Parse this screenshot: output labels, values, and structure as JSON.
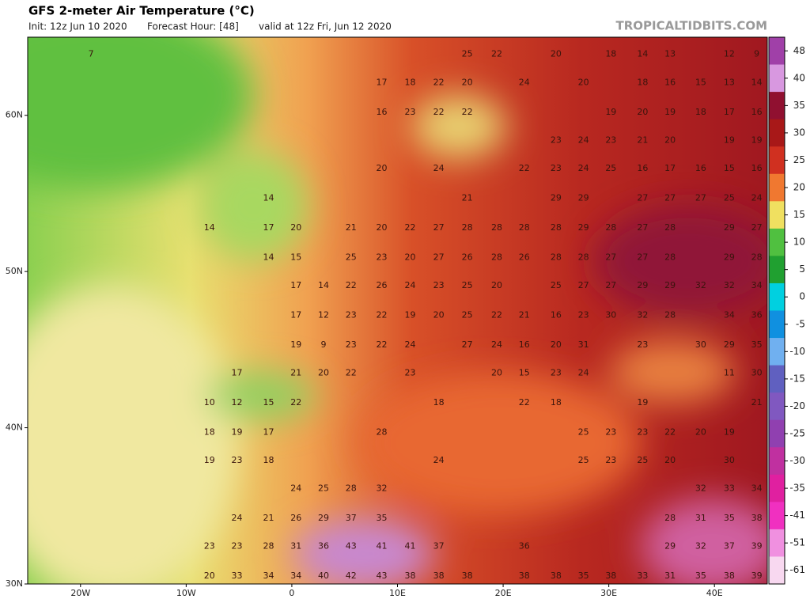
{
  "header": {
    "title": "GFS 2-meter Air Temperature (°C)",
    "init": "Init: 12z Jun 10 2020",
    "forecast_hour": "Forecast Hour: [48]",
    "valid": "valid at 12z Fri, Jun 12 2020",
    "site": "TROPICALTIDBITS.COM"
  },
  "map": {
    "lon_range": [
      -25,
      45
    ],
    "lat_range": [
      30,
      65
    ],
    "lat_ticks": [
      {
        "value": 60,
        "label": "60N"
      },
      {
        "value": 50,
        "label": "50N"
      },
      {
        "value": 40,
        "label": "40N"
      },
      {
        "value": 30,
        "label": "30N"
      }
    ],
    "lon_ticks": [
      {
        "value": -20,
        "label": "20W"
      },
      {
        "value": -10,
        "label": "10W"
      },
      0,
      {
        "value": 10,
        "label": "10E"
      },
      {
        "value": 20,
        "label": "20E"
      },
      {
        "value": 30,
        "label": "30E"
      },
      {
        "value": 40,
        "label": "40E"
      }
    ],
    "rows": [
      {
        "lat": 63.9,
        "points": [
          {
            "lon": -19,
            "value": 7
          },
          {
            "lon": 16.6,
            "value": 25
          },
          {
            "lon": 19.4,
            "value": 22
          },
          {
            "lon": 25,
            "value": 20
          },
          {
            "lon": 30.2,
            "value": 18
          },
          {
            "lon": 33.2,
            "value": 14
          },
          {
            "lon": 35.8,
            "value": 13
          },
          {
            "lon": 41.4,
            "value": 12
          },
          {
            "lon": 44,
            "value": 9
          }
        ]
      },
      {
        "lat": 62.1,
        "points": [
          {
            "lon": 8.5,
            "value": 17
          },
          {
            "lon": 11.2,
            "value": 18
          },
          {
            "lon": 13.9,
            "value": 22
          },
          {
            "lon": 16.6,
            "value": 20
          },
          {
            "lon": 22,
            "value": 24
          },
          {
            "lon": 27.6,
            "value": 20
          },
          {
            "lon": 33.2,
            "value": 18
          },
          {
            "lon": 35.8,
            "value": 16
          },
          {
            "lon": 38.7,
            "value": 15
          },
          {
            "lon": 41.4,
            "value": 13
          },
          {
            "lon": 44,
            "value": 14
          }
        ]
      },
      {
        "lat": 60.2,
        "points": [
          {
            "lon": 8.5,
            "value": 16
          },
          {
            "lon": 11.2,
            "value": 23
          },
          {
            "lon": 13.9,
            "value": 22
          },
          {
            "lon": 16.6,
            "value": 22
          },
          {
            "lon": 30.2,
            "value": 19
          },
          {
            "lon": 33.2,
            "value": 20
          },
          {
            "lon": 35.8,
            "value": 19
          },
          {
            "lon": 38.7,
            "value": 18
          },
          {
            "lon": 41.4,
            "value": 17
          },
          {
            "lon": 44,
            "value": 16
          }
        ]
      },
      {
        "lat": 58.4,
        "points": [
          {
            "lon": 25,
            "value": 23
          },
          {
            "lon": 27.6,
            "value": 24
          },
          {
            "lon": 30.2,
            "value": 23
          },
          {
            "lon": 33.2,
            "value": 21
          },
          {
            "lon": 35.8,
            "value": 20
          },
          {
            "lon": 41.4,
            "value": 19
          },
          {
            "lon": 44,
            "value": 19
          }
        ]
      },
      {
        "lat": 56.6,
        "points": [
          {
            "lon": 8.5,
            "value": 20
          },
          {
            "lon": 13.9,
            "value": 24
          },
          {
            "lon": 22,
            "value": 22
          },
          {
            "lon": 25,
            "value": 23
          },
          {
            "lon": 27.6,
            "value": 24
          },
          {
            "lon": 30.2,
            "value": 25
          },
          {
            "lon": 33.2,
            "value": 16
          },
          {
            "lon": 35.8,
            "value": 17
          },
          {
            "lon": 38.7,
            "value": 16
          },
          {
            "lon": 41.4,
            "value": 15
          },
          {
            "lon": 44,
            "value": 16
          }
        ]
      },
      {
        "lat": 54.7,
        "points": [
          {
            "lon": -2.2,
            "value": 14
          },
          {
            "lon": 16.6,
            "value": 21
          },
          {
            "lon": 25,
            "value": 29
          },
          {
            "lon": 27.6,
            "value": 29
          },
          {
            "lon": 33.2,
            "value": 27
          },
          {
            "lon": 35.8,
            "value": 27
          },
          {
            "lon": 38.7,
            "value": 27
          },
          {
            "lon": 41.4,
            "value": 25
          },
          {
            "lon": 44,
            "value": 24
          }
        ]
      },
      {
        "lat": 52.8,
        "points": [
          {
            "lon": -7.8,
            "value": 14
          },
          {
            "lon": -2.2,
            "value": 17
          },
          {
            "lon": 0.4,
            "value": 20
          },
          {
            "lon": 5.6,
            "value": 21
          },
          {
            "lon": 8.5,
            "value": 20
          },
          {
            "lon": 11.2,
            "value": 22
          },
          {
            "lon": 13.9,
            "value": 27
          },
          {
            "lon": 16.6,
            "value": 28
          },
          {
            "lon": 19.4,
            "value": 28
          },
          {
            "lon": 22,
            "value": 28
          },
          {
            "lon": 25,
            "value": 28
          },
          {
            "lon": 27.6,
            "value": 29
          },
          {
            "lon": 30.2,
            "value": 28
          },
          {
            "lon": 33.2,
            "value": 27
          },
          {
            "lon": 35.8,
            "value": 28
          },
          {
            "lon": 41.4,
            "value": 29
          },
          {
            "lon": 44,
            "value": 27
          }
        ]
      },
      {
        "lat": 50.9,
        "points": [
          {
            "lon": -2.2,
            "value": 14
          },
          {
            "lon": 0.4,
            "value": 15
          },
          {
            "lon": 5.6,
            "value": 25
          },
          {
            "lon": 8.5,
            "value": 23
          },
          {
            "lon": 11.2,
            "value": 20
          },
          {
            "lon": 13.9,
            "value": 27
          },
          {
            "lon": 16.6,
            "value": 26
          },
          {
            "lon": 19.4,
            "value": 28
          },
          {
            "lon": 22,
            "value": 26
          },
          {
            "lon": 25,
            "value": 28
          },
          {
            "lon": 27.6,
            "value": 28
          },
          {
            "lon": 30.2,
            "value": 27
          },
          {
            "lon": 33.2,
            "value": 27
          },
          {
            "lon": 35.8,
            "value": 28
          },
          {
            "lon": 41.4,
            "value": 29
          },
          {
            "lon": 44,
            "value": 28
          }
        ]
      },
      {
        "lat": 49.1,
        "points": [
          {
            "lon": 0.4,
            "value": 17
          },
          {
            "lon": 3,
            "value": 14
          },
          {
            "lon": 5.6,
            "value": 22
          },
          {
            "lon": 8.5,
            "value": 26
          },
          {
            "lon": 11.2,
            "value": 24
          },
          {
            "lon": 13.9,
            "value": 23
          },
          {
            "lon": 16.6,
            "value": 25
          },
          {
            "lon": 19.4,
            "value": 20
          },
          {
            "lon": 25,
            "value": 25
          },
          {
            "lon": 27.6,
            "value": 27
          },
          {
            "lon": 30.2,
            "value": 27
          },
          {
            "lon": 33.2,
            "value": 29
          },
          {
            "lon": 35.8,
            "value": 29
          },
          {
            "lon": 38.7,
            "value": 32
          },
          {
            "lon": 41.4,
            "value": 32
          },
          {
            "lon": 44,
            "value": 34
          }
        ]
      },
      {
        "lat": 47.2,
        "points": [
          {
            "lon": 0.4,
            "value": 17
          },
          {
            "lon": 3,
            "value": 12
          },
          {
            "lon": 5.6,
            "value": 23
          },
          {
            "lon": 8.5,
            "value": 22
          },
          {
            "lon": 11.2,
            "value": 19
          },
          {
            "lon": 13.9,
            "value": 20
          },
          {
            "lon": 16.6,
            "value": 25
          },
          {
            "lon": 19.4,
            "value": 22
          },
          {
            "lon": 22,
            "value": 21
          },
          {
            "lon": 25,
            "value": 16
          },
          {
            "lon": 27.6,
            "value": 23
          },
          {
            "lon": 30.2,
            "value": 30
          },
          {
            "lon": 33.2,
            "value": 32
          },
          {
            "lon": 35.8,
            "value": 28
          },
          {
            "lon": 41.4,
            "value": 34
          },
          {
            "lon": 44,
            "value": 36
          }
        ]
      },
      {
        "lat": 45.3,
        "points": [
          {
            "lon": 0.4,
            "value": 19
          },
          {
            "lon": 3,
            "value": 9
          },
          {
            "lon": 5.6,
            "value": 23
          },
          {
            "lon": 8.5,
            "value": 22
          },
          {
            "lon": 11.2,
            "value": 24
          },
          {
            "lon": 16.6,
            "value": 27
          },
          {
            "lon": 19.4,
            "value": 24
          },
          {
            "lon": 22,
            "value": 16
          },
          {
            "lon": 25,
            "value": 20
          },
          {
            "lon": 27.6,
            "value": 31
          },
          {
            "lon": 33.2,
            "value": 23
          },
          {
            "lon": 38.7,
            "value": 30
          },
          {
            "lon": 41.4,
            "value": 29
          },
          {
            "lon": 44,
            "value": 35
          }
        ]
      },
      {
        "lat": 43.5,
        "points": [
          {
            "lon": -5.2,
            "value": 17
          },
          {
            "lon": 0.4,
            "value": 21
          },
          {
            "lon": 3,
            "value": 20
          },
          {
            "lon": 5.6,
            "value": 22
          },
          {
            "lon": 11.2,
            "value": 23
          },
          {
            "lon": 19.4,
            "value": 20
          },
          {
            "lon": 22,
            "value": 15
          },
          {
            "lon": 25,
            "value": 23
          },
          {
            "lon": 27.6,
            "value": 24
          },
          {
            "lon": 41.4,
            "value": 11
          },
          {
            "lon": 44,
            "value": 30
          }
        ]
      },
      {
        "lat": 41.6,
        "points": [
          {
            "lon": -7.8,
            "value": 10
          },
          {
            "lon": -5.2,
            "value": 12
          },
          {
            "lon": -2.2,
            "value": 15
          },
          {
            "lon": 0.4,
            "value": 22
          },
          {
            "lon": 13.9,
            "value": 18
          },
          {
            "lon": 22,
            "value": 22
          },
          {
            "lon": 25,
            "value": 18
          },
          {
            "lon": 33.2,
            "value": 19
          },
          {
            "lon": 44,
            "value": 21
          }
        ]
      },
      {
        "lat": 39.7,
        "points": [
          {
            "lon": -7.8,
            "value": 18
          },
          {
            "lon": -5.2,
            "value": 19
          },
          {
            "lon": -2.2,
            "value": 17
          },
          {
            "lon": 8.5,
            "value": 28
          },
          {
            "lon": 27.6,
            "value": 25
          },
          {
            "lon": 30.2,
            "value": 23
          },
          {
            "lon": 33.2,
            "value": 23
          },
          {
            "lon": 35.8,
            "value": 22
          },
          {
            "lon": 38.7,
            "value": 20
          },
          {
            "lon": 41.4,
            "value": 19
          }
        ]
      },
      {
        "lat": 37.9,
        "points": [
          {
            "lon": -7.8,
            "value": 19
          },
          {
            "lon": -5.2,
            "value": 23
          },
          {
            "lon": -2.2,
            "value": 18
          },
          {
            "lon": 13.9,
            "value": 24
          },
          {
            "lon": 27.6,
            "value": 25
          },
          {
            "lon": 30.2,
            "value": 23
          },
          {
            "lon": 33.2,
            "value": 25
          },
          {
            "lon": 35.8,
            "value": 20
          },
          {
            "lon": 41.4,
            "value": 30
          }
        ]
      },
      {
        "lat": 36.1,
        "points": [
          {
            "lon": 0.4,
            "value": 24
          },
          {
            "lon": 3,
            "value": 25
          },
          {
            "lon": 5.6,
            "value": 28
          },
          {
            "lon": 8.5,
            "value": 32
          },
          {
            "lon": 38.7,
            "value": 32
          },
          {
            "lon": 41.4,
            "value": 33
          },
          {
            "lon": 44,
            "value": 34
          }
        ]
      },
      {
        "lat": 34.2,
        "points": [
          {
            "lon": -5.2,
            "value": 24
          },
          {
            "lon": -2.2,
            "value": 21
          },
          {
            "lon": 0.4,
            "value": 26
          },
          {
            "lon": 3,
            "value": 29
          },
          {
            "lon": 5.6,
            "value": 37
          },
          {
            "lon": 8.5,
            "value": 35
          },
          {
            "lon": 35.8,
            "value": 28
          },
          {
            "lon": 38.7,
            "value": 31
          },
          {
            "lon": 41.4,
            "value": 35
          },
          {
            "lon": 44,
            "value": 38
          }
        ]
      },
      {
        "lat": 32.4,
        "points": [
          {
            "lon": -7.8,
            "value": 23
          },
          {
            "lon": -5.2,
            "value": 23
          },
          {
            "lon": -2.2,
            "value": 28
          },
          {
            "lon": 0.4,
            "value": 31
          },
          {
            "lon": 3,
            "value": 36
          },
          {
            "lon": 5.6,
            "value": 43
          },
          {
            "lon": 8.5,
            "value": 41
          },
          {
            "lon": 11.2,
            "value": 41
          },
          {
            "lon": 13.9,
            "value": 37
          },
          {
            "lon": 22,
            "value": 36
          },
          {
            "lon": 35.8,
            "value": 29
          },
          {
            "lon": 38.7,
            "value": 32
          },
          {
            "lon": 41.4,
            "value": 37
          },
          {
            "lon": 44,
            "value": 39
          }
        ]
      },
      {
        "lat": 30.5,
        "points": [
          {
            "lon": -7.8,
            "value": 20
          },
          {
            "lon": -5.2,
            "value": 33
          },
          {
            "lon": -2.2,
            "value": 34
          },
          {
            "lon": 0.4,
            "value": 34
          },
          {
            "lon": 3,
            "value": 40
          },
          {
            "lon": 5.6,
            "value": 42
          },
          {
            "lon": 8.5,
            "value": 43
          },
          {
            "lon": 11.2,
            "value": 38
          },
          {
            "lon": 13.9,
            "value": 38
          },
          {
            "lon": 16.6,
            "value": 38
          },
          {
            "lon": 22,
            "value": 38
          },
          {
            "lon": 25,
            "value": 38
          },
          {
            "lon": 27.6,
            "value": 35
          },
          {
            "lon": 30.2,
            "value": 38
          },
          {
            "lon": 33.2,
            "value": 33
          },
          {
            "lon": 35.8,
            "value": 31
          },
          {
            "lon": 38.7,
            "value": 35
          },
          {
            "lon": 41.4,
            "value": 38
          },
          {
            "lon": 44,
            "value": 39
          }
        ]
      }
    ]
  },
  "colorbar": {
    "ticks": [
      48,
      40,
      35,
      30,
      25,
      20,
      15,
      10,
      5,
      0,
      -5,
      -10,
      -15,
      -20,
      -25,
      -30,
      -35,
      -41,
      -51,
      -61
    ],
    "colors": [
      "#a040a8",
      "#d898e0",
      "#901030",
      "#a81818",
      "#d03020",
      "#f07830",
      "#f0e060",
      "#50c040",
      "#20a030",
      "#00d0e0",
      "#1090e0",
      "#70b0f0",
      "#6060c0",
      "#8058c0",
      "#9040b0",
      "#c030a0",
      "#e020a0",
      "#f030c0",
      "#f090e0",
      "#f8d8f0"
    ]
  }
}
